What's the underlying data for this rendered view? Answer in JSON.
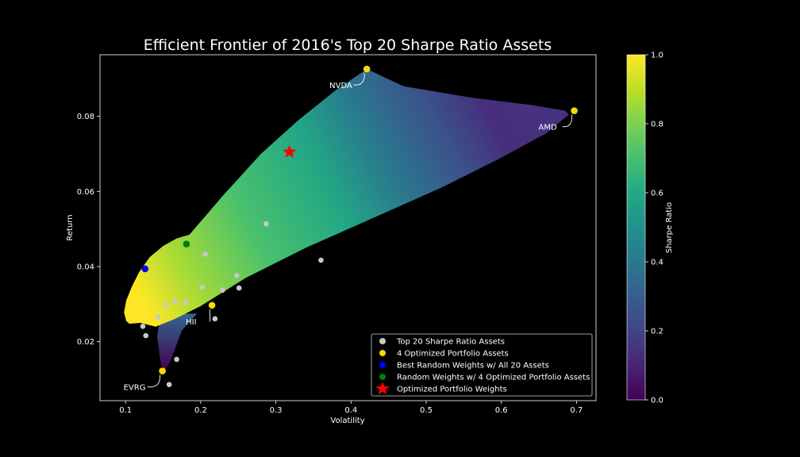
{
  "chart_data": {
    "type": "scatter",
    "title": "Efficient Frontier of 2016's Top 20 Sharpe Ratio Assets",
    "xlabel": "Volatility",
    "ylabel": "Return",
    "xlim": [
      0.066,
      0.726
    ],
    "ylim": [
      0.0043,
      0.0964
    ],
    "xticks": [
      "0.1",
      "0.2",
      "0.3",
      "0.4",
      "0.5",
      "0.6",
      "0.7"
    ],
    "yticks": [
      "0.02",
      "0.04",
      "0.06",
      "0.08"
    ],
    "grid": false,
    "legend_position": "lower-right",
    "colorbar": {
      "label": "Sharpe Ratio",
      "range": [
        0.0,
        1.0
      ],
      "ticks": [
        "0.0",
        "0.2",
        "0.4",
        "0.6",
        "0.8",
        "1.0"
      ],
      "colormap": "viridis"
    },
    "series": [
      {
        "name": "Top 20 Sharpe Ratio Assets",
        "color": "#c8c8c8",
        "marker": "circle",
        "x": [
          0.287,
          0.36,
          0.206,
          0.248,
          0.202,
          0.251,
          0.229,
          0.166,
          0.154,
          0.18,
          0.143,
          0.219,
          0.123,
          0.127,
          0.168,
          0.158
        ],
        "y": [
          0.0514,
          0.0417,
          0.0433,
          0.0376,
          0.0345,
          0.0343,
          0.0337,
          0.0308,
          0.0299,
          0.0304,
          0.0266,
          0.0261,
          0.0241,
          0.0216,
          0.0153,
          0.0086
        ]
      },
      {
        "name": "4 Optimized Portfolio Assets",
        "color": "#ffd700",
        "marker": "circle",
        "x": [
          0.421,
          0.697,
          0.215,
          0.149
        ],
        "y": [
          0.0926,
          0.0815,
          0.0297,
          0.0122
        ],
        "labels": [
          "NVDA",
          "AMD",
          "HII",
          "EVRG"
        ]
      },
      {
        "name": "Best Random Weights w/ All 20 Assets",
        "color": "#0000ff",
        "marker": "circle",
        "x": [
          0.126
        ],
        "y": [
          0.0394
        ]
      },
      {
        "name": "Random Weights w/ 4 Optimized Portfolio Assets",
        "color": "#008000",
        "marker": "circle",
        "x": [
          0.181
        ],
        "y": [
          0.046
        ]
      },
      {
        "name": "Optimized Portfolio Weights",
        "color": "#ff0000",
        "marker": "star",
        "x": [
          0.318
        ],
        "y": [
          0.0705
        ]
      }
    ]
  }
}
